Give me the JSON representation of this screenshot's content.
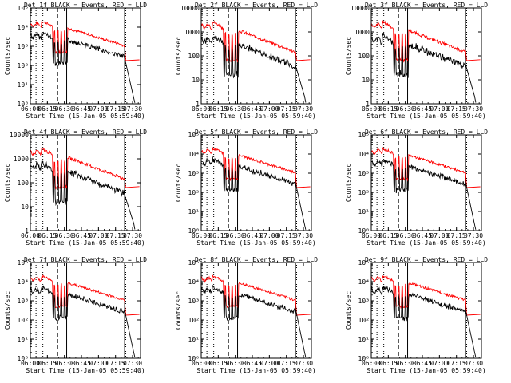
{
  "chart_data": [
    {
      "type": "line",
      "title": "Det 1f BLACK = Events, RED = LLD",
      "xlabel": "Start Time (15-Jan-05 05:59:40)",
      "ylabel": "Counts/sec",
      "ylog": true,
      "ylim": [
        1,
        100000
      ],
      "yticks": [
        "10⁰",
        "10¹",
        "10²",
        "10³",
        "10⁴",
        "10⁵"
      ],
      "ytick_values": [
        1,
        10,
        100,
        1000,
        10000,
        100000
      ],
      "xlim": [
        "06:00",
        "07:37"
      ],
      "xticks": [
        "06:00",
        "06:15",
        "06:30",
        "06:45",
        "07:00",
        "07:15",
        "07:30"
      ],
      "grid": false,
      "legend": "title",
      "series": [
        {
          "color": "#000000"
        },
        {
          "color": "#ff0000"
        }
      ]
    },
    {
      "type": "line",
      "title": "Det 2f BLACK = Events, RED = LLD",
      "xlabel": "Start Time (15-Jan-05 05:59:40)",
      "ylabel": "Counts/sec",
      "ylog": true,
      "ylim": [
        1,
        10000
      ],
      "yticks": [
        "1",
        "10",
        "100",
        "1000",
        "10000"
      ],
      "ytick_values": [
        1,
        10,
        100,
        1000,
        10000
      ],
      "xlim": [
        "06:00",
        "07:37"
      ],
      "xticks": [
        "06:00",
        "06:15",
        "06:30",
        "06:45",
        "07:00",
        "07:15",
        "07:30"
      ],
      "grid": false,
      "legend": "title",
      "series": [
        {
          "color": "#000000"
        },
        {
          "color": "#ff0000"
        }
      ]
    },
    {
      "type": "line",
      "title": "Det 3f BLACK = Events, RED = LLD",
      "xlabel": "Start Time (15-Jan-05 05:59:40)",
      "ylabel": "Counts/sec",
      "ylog": true,
      "ylim": [
        1,
        10000
      ],
      "yticks": [
        "1",
        "10",
        "100",
        "1000",
        "10000"
      ],
      "ytick_values": [
        1,
        10,
        100,
        1000,
        10000
      ],
      "xlim": [
        "06:00",
        "07:37"
      ],
      "xticks": [
        "06:00",
        "06:15",
        "06:30",
        "06:45",
        "07:00",
        "07:15",
        "07:30"
      ],
      "grid": false,
      "legend": "title",
      "series": [
        {
          "color": "#000000"
        },
        {
          "color": "#ff0000"
        }
      ]
    },
    {
      "type": "line",
      "title": "Det 4f BLACK = Events, RED = LLD",
      "xlabel": "Start Time (15-Jan-05 05:59:40)",
      "ylabel": "Counts/sec",
      "ylog": true,
      "ylim": [
        1,
        10000
      ],
      "yticks": [
        "1",
        "10",
        "100",
        "1000",
        "10000"
      ],
      "ytick_values": [
        1,
        10,
        100,
        1000,
        10000
      ],
      "xlim": [
        "06:00",
        "07:37"
      ],
      "xticks": [
        "06:00",
        "06:15",
        "06:30",
        "06:45",
        "07:00",
        "07:15",
        "07:30"
      ],
      "grid": false,
      "legend": "title",
      "series": [
        {
          "color": "#000000"
        },
        {
          "color": "#ff0000"
        }
      ]
    },
    {
      "type": "line",
      "title": "Det 5f BLACK = Events, RED = LLD",
      "xlabel": "Start Time (15-Jan-05 05:59:40)",
      "ylabel": "Counts/sec",
      "ylog": true,
      "ylim": [
        1,
        100000
      ],
      "yticks": [
        "10⁰",
        "10¹",
        "10²",
        "10³",
        "10⁴",
        "10⁵"
      ],
      "ytick_values": [
        1,
        10,
        100,
        1000,
        10000,
        100000
      ],
      "xlim": [
        "06:00",
        "07:37"
      ],
      "xticks": [
        "06:00",
        "06:15",
        "06:30",
        "06:45",
        "07:00",
        "07:15",
        "07:30"
      ],
      "grid": false,
      "legend": "title",
      "series": [
        {
          "color": "#000000"
        },
        {
          "color": "#ff0000"
        }
      ]
    },
    {
      "type": "line",
      "title": "Det 6f BLACK = Events, RED = LLD",
      "xlabel": "Start Time (15-Jan-05 05:59:40)",
      "ylabel": "Counts/sec",
      "ylog": true,
      "ylim": [
        1,
        100000
      ],
      "yticks": [
        "10⁰",
        "10¹",
        "10²",
        "10³",
        "10⁴",
        "10⁵"
      ],
      "ytick_values": [
        1,
        10,
        100,
        1000,
        10000,
        100000
      ],
      "xlim": [
        "06:00",
        "07:37"
      ],
      "xticks": [
        "06:00",
        "06:15",
        "06:30",
        "06:45",
        "07:00",
        "07:15",
        "07:30"
      ],
      "grid": false,
      "legend": "title",
      "series": [
        {
          "color": "#000000"
        },
        {
          "color": "#ff0000"
        }
      ]
    },
    {
      "type": "line",
      "title": "Det 7f BLACK = Events, RED = LLD",
      "xlabel": "Start Time (15-Jan-05 05:59:40)",
      "ylabel": "Counts/sec",
      "ylog": true,
      "ylim": [
        1,
        100000
      ],
      "yticks": [
        "10⁰",
        "10¹",
        "10²",
        "10³",
        "10⁴",
        "10⁵"
      ],
      "ytick_values": [
        1,
        10,
        100,
        1000,
        10000,
        100000
      ],
      "xlim": [
        "06:00",
        "07:37"
      ],
      "xticks": [
        "06:00",
        "06:15",
        "06:30",
        "06:45",
        "07:00",
        "07:15",
        "07:30"
      ],
      "grid": false,
      "legend": "title",
      "series": [
        {
          "color": "#000000"
        },
        {
          "color": "#ff0000"
        }
      ]
    },
    {
      "type": "line",
      "title": "Det 8f BLACK = Events, RED = LLD",
      "xlabel": "Start Time (15-Jan-05 05:59:40)",
      "ylabel": "Counts/sec",
      "ylog": true,
      "ylim": [
        1,
        100000
      ],
      "yticks": [
        "10⁰",
        "10¹",
        "10²",
        "10³",
        "10⁴",
        "10⁵"
      ],
      "ytick_values": [
        1,
        10,
        100,
        1000,
        10000,
        100000
      ],
      "xlim": [
        "06:00",
        "07:37"
      ],
      "xticks": [
        "06:00",
        "06:15",
        "06:30",
        "06:45",
        "07:00",
        "07:15",
        "07:30"
      ],
      "grid": false,
      "legend": "title",
      "series": [
        {
          "color": "#000000"
        },
        {
          "color": "#ff0000"
        }
      ]
    },
    {
      "type": "line",
      "title": "Det 9f BLACK = Events, RED = LLD",
      "xlabel": "Start Time (15-Jan-05 05:59:40)",
      "ylabel": "Counts/sec",
      "ylog": true,
      "ylim": [
        1,
        100000
      ],
      "yticks": [
        "10⁰",
        "10¹",
        "10²",
        "10³",
        "10⁴",
        "10⁵"
      ],
      "ytick_values": [
        1,
        10,
        100,
        1000,
        10000,
        100000
      ],
      "xlim": [
        "06:00",
        "07:37"
      ],
      "xticks": [
        "06:00",
        "06:15",
        "06:30",
        "06:45",
        "07:00",
        "07:15",
        "07:30"
      ],
      "grid": false,
      "legend": "title",
      "series": [
        {
          "color": "#000000"
        },
        {
          "color": "#ff0000"
        }
      ]
    }
  ]
}
